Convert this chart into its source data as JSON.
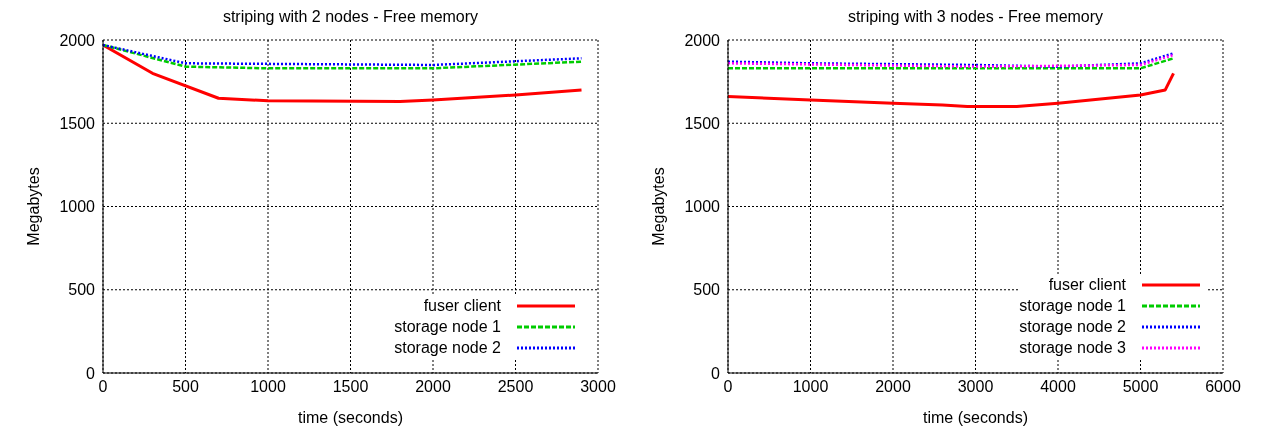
{
  "chart_data": [
    {
      "type": "line",
      "title": "striping with 2 nodes - Free memory",
      "xlabel": "time (seconds)",
      "ylabel": "Megabytes",
      "xlim": [
        0,
        3000
      ],
      "xticks": [
        0,
        500,
        1000,
        1500,
        2000,
        2500,
        3000
      ],
      "ylim": [
        0,
        2000
      ],
      "yticks": [
        0,
        500,
        1000,
        1500,
        2000
      ],
      "grid": true,
      "legend": "bottom right",
      "marker": "none",
      "series": [
        {
          "name": "fuser client",
          "color": "#ff0000",
          "line_style": "solid",
          "x": [
            0,
            300,
            700,
            1000,
            1800,
            2000,
            2500,
            2900
          ],
          "values": [
            1970,
            1800,
            1650,
            1635,
            1630,
            1640,
            1670,
            1700
          ]
        },
        {
          "name": "storage node 1",
          "color": "#00cc00",
          "line_style": "dashed",
          "x": [
            0,
            500,
            1000,
            2000,
            2900
          ],
          "values": [
            1970,
            1840,
            1830,
            1830,
            1870
          ]
        },
        {
          "name": "storage node 2",
          "color": "#0000ff",
          "line_style": "dotted",
          "x": [
            0,
            500,
            2000,
            2900
          ],
          "values": [
            1970,
            1860,
            1850,
            1890
          ]
        }
      ]
    },
    {
      "type": "line",
      "title": "striping with 3 nodes - Free memory",
      "xlabel": "time (seconds)",
      "ylabel": "Megabytes",
      "xlim": [
        0,
        6000
      ],
      "xticks": [
        0,
        1000,
        2000,
        3000,
        4000,
        5000,
        6000
      ],
      "ylim": [
        0,
        2000
      ],
      "yticks": [
        0,
        500,
        1000,
        1500,
        2000
      ],
      "grid": true,
      "legend": "bottom right",
      "marker": "none",
      "series": [
        {
          "name": "fuser client",
          "color": "#ff0000",
          "line_style": "solid",
          "x": [
            0,
            1000,
            2000,
            2600,
            2900,
            3500,
            4000,
            5000,
            5300,
            5400
          ],
          "values": [
            1660,
            1640,
            1620,
            1610,
            1600,
            1600,
            1620,
            1670,
            1700,
            1800
          ]
        },
        {
          "name": "storage node 1",
          "color": "#00cc00",
          "line_style": "dashed",
          "x": [
            0,
            5000,
            5400
          ],
          "values": [
            1830,
            1830,
            1890
          ]
        },
        {
          "name": "storage node 2",
          "color": "#0000ff",
          "line_style": "dotted",
          "x": [
            0,
            1000,
            3000,
            4000,
            5000,
            5400
          ],
          "values": [
            1870,
            1860,
            1850,
            1840,
            1860,
            1920
          ]
        },
        {
          "name": "storage node 3",
          "color": "#ff00ff",
          "line_style": "dotted",
          "x": [
            0,
            3000,
            5000,
            5400
          ],
          "values": [
            1860,
            1840,
            1850,
            1910
          ]
        }
      ]
    }
  ]
}
